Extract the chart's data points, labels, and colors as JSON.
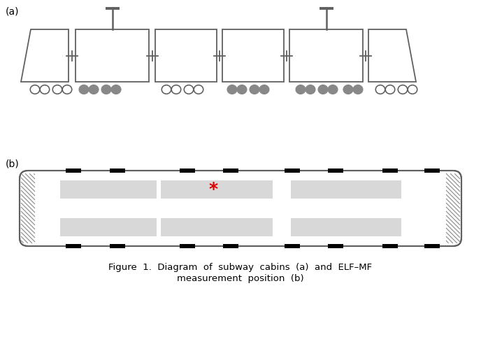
{
  "fig_width": 6.88,
  "fig_height": 4.82,
  "bg_color": "#ffffff",
  "label_a": "(a)",
  "label_b": "(b)",
  "caption_line1": "Figure  1.  Diagram  of  subway  cabins  (a)  and  ELF–MF",
  "caption_line2": "measurement  position  (b)",
  "stroke": "#606060",
  "wheel_open_fc": "#ffffff",
  "wheel_open_ec": "#606060",
  "wheel_filled_fc": "#888888",
  "wheel_filled_ec": "#888888",
  "seat_color": "#d8d8d8",
  "door_color": "#111111",
  "hatch_color": "#888888",
  "star_color": "#dd0000"
}
